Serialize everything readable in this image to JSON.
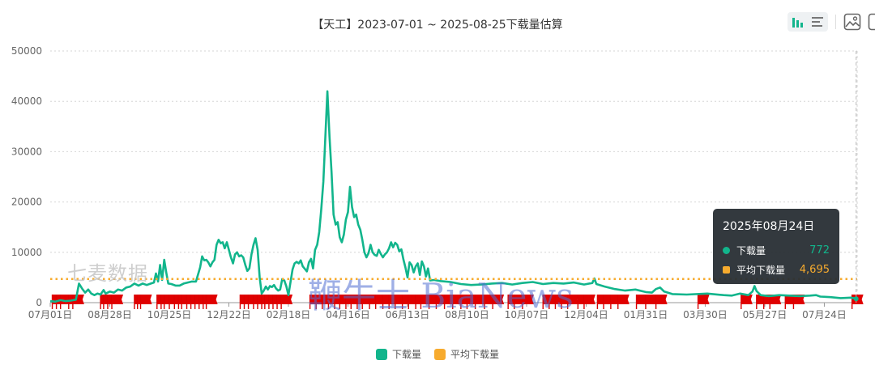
{
  "title": "【天工】2023-07-01 ~ 2025-08-25下载量估算",
  "toolbar": {
    "icons": [
      "bar-chart-icon",
      "list-icon",
      "save-image-icon"
    ]
  },
  "watermarks": {
    "left": "七麦数据",
    "center": "鞭牛士 BiaNews"
  },
  "tooltip": {
    "date": "2025年08月24日",
    "rows": [
      {
        "label": "下载量",
        "value": "772",
        "color": "#12b58c"
      },
      {
        "label": "平均下载量",
        "value": "4,695",
        "color": "#f7ab2e"
      }
    ]
  },
  "legend": [
    {
      "label": "下载量",
      "color": "#12b58c"
    },
    {
      "label": "平均下载量",
      "color": "#f7ab2e"
    }
  ],
  "chart_data": {
    "type": "line",
    "title": "【天工】2023-07-01 ~ 2025-08-25下载量估算",
    "xlabel": "",
    "ylabel": "",
    "ylim": [
      0,
      50000
    ],
    "y_ticks": [
      "0",
      "10000",
      "20000",
      "30000",
      "40000",
      "50000"
    ],
    "x_ticks": [
      "07月01日",
      "08月28日",
      "10月25日",
      "12月22日",
      "02月18日",
      "04月16日",
      "06月13日",
      "08月10日",
      "10月07日",
      "12月04日",
      "01月31日",
      "03月30日",
      "05月27日",
      "07月24日"
    ],
    "x_tick_day_offsets": [
      0,
      58,
      116,
      174,
      232,
      290,
      348,
      406,
      464,
      522,
      580,
      638,
      696,
      754
    ],
    "grid": true,
    "legend_position": "bottom",
    "series": [
      {
        "name": "下载量",
        "color": "#12b58c",
        "points_day_value": [
          [
            0,
            300
          ],
          [
            5,
            200
          ],
          [
            10,
            500
          ],
          [
            15,
            300
          ],
          [
            20,
            400
          ],
          [
            25,
            600
          ],
          [
            28,
            3800
          ],
          [
            31,
            2800
          ],
          [
            34,
            2000
          ],
          [
            37,
            2600
          ],
          [
            40,
            1800
          ],
          [
            43,
            1500
          ],
          [
            46,
            1800
          ],
          [
            49,
            1600
          ],
          [
            52,
            2500
          ],
          [
            54,
            1800
          ],
          [
            58,
            2200
          ],
          [
            62,
            2000
          ],
          [
            66,
            2600
          ],
          [
            70,
            2400
          ],
          [
            74,
            3000
          ],
          [
            78,
            3200
          ],
          [
            82,
            3800
          ],
          [
            86,
            3400
          ],
          [
            90,
            3800
          ],
          [
            94,
            3500
          ],
          [
            98,
            3800
          ],
          [
            101,
            4000
          ],
          [
            103,
            5800
          ],
          [
            105,
            4200
          ],
          [
            107,
            7500
          ],
          [
            109,
            4500
          ],
          [
            111,
            8500
          ],
          [
            113,
            6000
          ],
          [
            115,
            3800
          ],
          [
            118,
            3700
          ],
          [
            122,
            3400
          ],
          [
            126,
            3400
          ],
          [
            130,
            3800
          ],
          [
            134,
            4000
          ],
          [
            138,
            4200
          ],
          [
            142,
            4200
          ],
          [
            146,
            7000
          ],
          [
            148,
            9200
          ],
          [
            150,
            8400
          ],
          [
            152,
            8500
          ],
          [
            154,
            8000
          ],
          [
            156,
            7200
          ],
          [
            158,
            8000
          ],
          [
            160,
            8500
          ],
          [
            162,
            11500
          ],
          [
            164,
            12500
          ],
          [
            166,
            11800
          ],
          [
            168,
            12000
          ],
          [
            170,
            10800
          ],
          [
            172,
            12000
          ],
          [
            174,
            10500
          ],
          [
            176,
            9000
          ],
          [
            178,
            7800
          ],
          [
            180,
            9600
          ],
          [
            182,
            10000
          ],
          [
            184,
            9200
          ],
          [
            186,
            9400
          ],
          [
            188,
            9000
          ],
          [
            190,
            7500
          ],
          [
            192,
            6300
          ],
          [
            194,
            6800
          ],
          [
            196,
            9600
          ],
          [
            198,
            11500
          ],
          [
            200,
            12800
          ],
          [
            202,
            10500
          ],
          [
            204,
            5000
          ],
          [
            206,
            1800
          ],
          [
            208,
            2400
          ],
          [
            210,
            3200
          ],
          [
            212,
            2600
          ],
          [
            214,
            3300
          ],
          [
            216,
            3100
          ],
          [
            218,
            3500
          ],
          [
            220,
            2800
          ],
          [
            222,
            2400
          ],
          [
            224,
            2600
          ],
          [
            226,
            4700
          ],
          [
            228,
            4400
          ],
          [
            230,
            3200
          ],
          [
            232,
            1500
          ],
          [
            234,
            4000
          ],
          [
            236,
            6600
          ],
          [
            238,
            7800
          ],
          [
            240,
            8100
          ],
          [
            242,
            7800
          ],
          [
            244,
            8400
          ],
          [
            246,
            7200
          ],
          [
            248,
            6700
          ],
          [
            250,
            6200
          ],
          [
            252,
            8000
          ],
          [
            254,
            8700
          ],
          [
            256,
            6800
          ],
          [
            258,
            10500
          ],
          [
            260,
            11500
          ],
          [
            262,
            14000
          ],
          [
            264,
            18500
          ],
          [
            266,
            24000
          ],
          [
            268,
            33000
          ],
          [
            270,
            42000
          ],
          [
            272,
            33000
          ],
          [
            274,
            26000
          ],
          [
            276,
            17500
          ],
          [
            278,
            15500
          ],
          [
            280,
            16000
          ],
          [
            282,
            13000
          ],
          [
            284,
            12000
          ],
          [
            286,
            13500
          ],
          [
            288,
            16500
          ],
          [
            290,
            18000
          ],
          [
            292,
            23000
          ],
          [
            294,
            19000
          ],
          [
            296,
            17000
          ],
          [
            298,
            17500
          ],
          [
            300,
            15500
          ],
          [
            302,
            14500
          ],
          [
            304,
            12500
          ],
          [
            306,
            10000
          ],
          [
            308,
            9000
          ],
          [
            310,
            9800
          ],
          [
            312,
            11500
          ],
          [
            314,
            10000
          ],
          [
            316,
            9500
          ],
          [
            318,
            9300
          ],
          [
            320,
            10500
          ],
          [
            322,
            9700
          ],
          [
            324,
            9000
          ],
          [
            326,
            9600
          ],
          [
            328,
            10000
          ],
          [
            330,
            10800
          ],
          [
            332,
            12000
          ],
          [
            334,
            11000
          ],
          [
            336,
            11900
          ],
          [
            338,
            11500
          ],
          [
            340,
            10200
          ],
          [
            342,
            10600
          ],
          [
            344,
            8600
          ],
          [
            346,
            7000
          ],
          [
            348,
            5000
          ],
          [
            350,
            8000
          ],
          [
            352,
            7500
          ],
          [
            354,
            6000
          ],
          [
            356,
            7200
          ],
          [
            358,
            7800
          ],
          [
            360,
            5500
          ],
          [
            362,
            8200
          ],
          [
            364,
            7200
          ],
          [
            366,
            5200
          ],
          [
            368,
            6800
          ],
          [
            370,
            4400
          ],
          [
            374,
            4500
          ],
          [
            380,
            4300
          ],
          [
            390,
            4100
          ],
          [
            400,
            3700
          ],
          [
            410,
            3500
          ],
          [
            420,
            3600
          ],
          [
            430,
            3800
          ],
          [
            440,
            3900
          ],
          [
            450,
            3600
          ],
          [
            460,
            3900
          ],
          [
            470,
            4100
          ],
          [
            480,
            3700
          ],
          [
            490,
            3900
          ],
          [
            500,
            3800
          ],
          [
            510,
            4000
          ],
          [
            520,
            3600
          ],
          [
            528,
            3900
          ],
          [
            530,
            4800
          ],
          [
            532,
            3700
          ],
          [
            540,
            3200
          ],
          [
            550,
            2700
          ],
          [
            560,
            2400
          ],
          [
            570,
            2600
          ],
          [
            580,
            2100
          ],
          [
            586,
            2000
          ],
          [
            590,
            2700
          ],
          [
            594,
            3000
          ],
          [
            598,
            2200
          ],
          [
            606,
            1700
          ],
          [
            620,
            1600
          ],
          [
            640,
            1800
          ],
          [
            656,
            1500
          ],
          [
            664,
            1400
          ],
          [
            672,
            1800
          ],
          [
            680,
            1500
          ],
          [
            684,
            2200
          ],
          [
            686,
            3300
          ],
          [
            688,
            2300
          ],
          [
            692,
            1500
          ],
          [
            700,
            1300
          ],
          [
            710,
            1500
          ],
          [
            720,
            1400
          ],
          [
            730,
            1300
          ],
          [
            740,
            1400
          ],
          [
            746,
            1500
          ],
          [
            750,
            1200
          ],
          [
            760,
            1100
          ],
          [
            770,
            900
          ],
          [
            780,
            1000
          ],
          [
            785,
            772
          ]
        ]
      },
      {
        "name": "平均下载量",
        "color": "#f7ab2e",
        "constant_value": 4695
      }
    ],
    "event_flags_day_offsets": [
      2,
      6,
      10,
      18,
      22,
      49,
      52,
      56,
      60,
      82,
      85,
      88,
      104,
      108,
      111,
      116,
      121,
      125,
      128,
      133,
      137,
      141,
      145,
      149,
      152,
      185,
      189,
      193,
      198,
      202,
      206,
      209,
      213,
      217,
      221,
      225,
      253,
      259,
      265,
      271,
      277,
      282,
      288,
      293,
      299,
      304,
      311,
      317,
      324,
      330,
      336,
      343,
      349,
      356,
      361,
      369,
      376,
      384,
      392,
      400,
      406,
      414,
      423,
      431,
      446,
      452,
      460,
      480,
      486,
      492,
      498,
      504,
      514,
      520,
      533,
      539,
      546,
      553,
      571,
      580,
      590,
      631,
      673,
      688,
      695,
      701,
      716,
      724,
      781
    ]
  }
}
